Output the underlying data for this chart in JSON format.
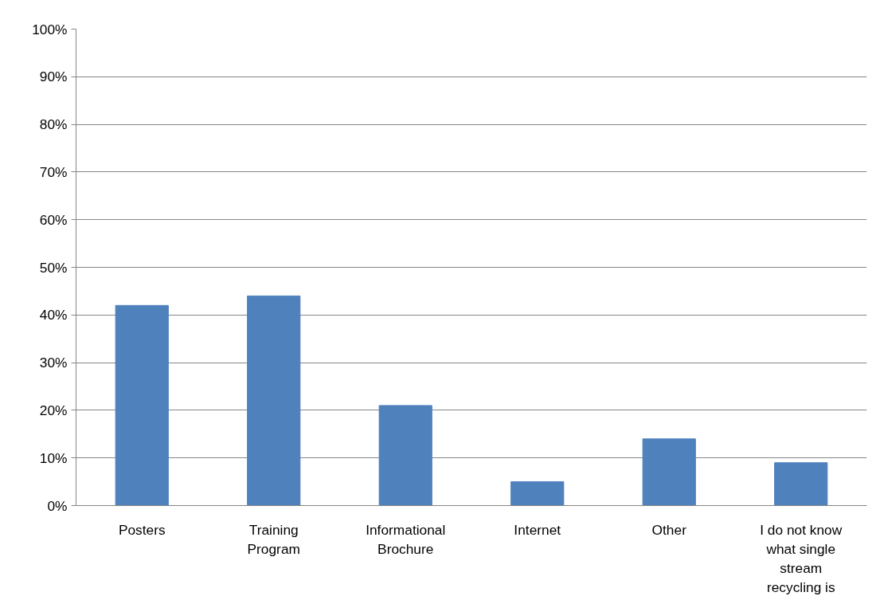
{
  "chart_data": {
    "type": "bar",
    "categories": [
      "Posters",
      "Training Program",
      "Informational Brochure",
      "Internet",
      "Other",
      "I do not know what single stream recycling is"
    ],
    "values": [
      42,
      44,
      21,
      5,
      14,
      9
    ],
    "color": "#4f81bd",
    "ylim": [
      0,
      100
    ],
    "yticks": [
      {
        "value": 0,
        "label": "0%"
      },
      {
        "value": 10,
        "label": "10%"
      },
      {
        "value": 20,
        "label": "20%"
      },
      {
        "value": 30,
        "label": "30%"
      },
      {
        "value": 40,
        "label": "40%"
      },
      {
        "value": 50,
        "label": "50%"
      },
      {
        "value": 60,
        "label": "60%"
      },
      {
        "value": 70,
        "label": "70%"
      },
      {
        "value": 80,
        "label": "80%"
      },
      {
        "value": 90,
        "label": "90%"
      },
      {
        "value": 100,
        "label": "100%"
      }
    ],
    "grid": "y"
  }
}
